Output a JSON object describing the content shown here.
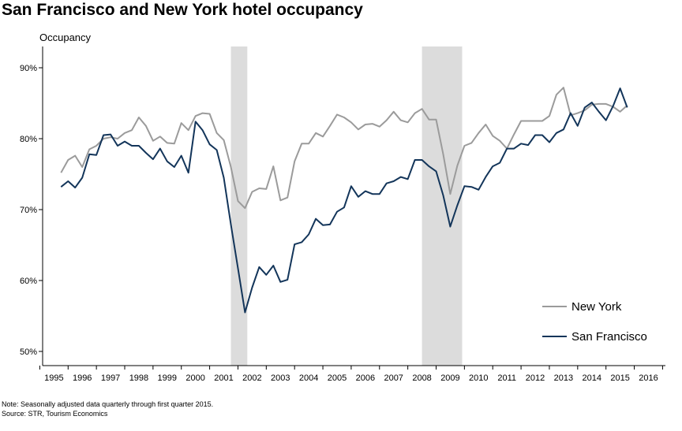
{
  "chart_data": {
    "type": "line",
    "title": "San Francisco and New York hotel occupancy",
    "ylabel": "Occupancy",
    "xlabel": "",
    "ylim": [
      0.48,
      0.93
    ],
    "xlim": [
      1994.6,
      2016.6
    ],
    "yticks": [
      "50%",
      "60%",
      "70%",
      "80%",
      "90%"
    ],
    "ytick_values": [
      0.5,
      0.6,
      0.7,
      0.8,
      0.9
    ],
    "xticks": [
      "1995",
      "1996",
      "1997",
      "1998",
      "1999",
      "2000",
      "2001",
      "2002",
      "2003",
      "2004",
      "2005",
      "2006",
      "2007",
      "2008",
      "2009",
      "2010",
      "2011",
      "2012",
      "2013",
      "2014",
      "2015",
      "2016"
    ],
    "grid": false,
    "legend_position": "bottom-right",
    "recessions": [
      [
        2001.25,
        2001.83
      ],
      [
        2008.0,
        2009.42
      ]
    ],
    "recession_color": "#dcdcdc",
    "series": [
      {
        "name": "New York",
        "color": "#9b9b9b",
        "points": [
          [
            1995.25,
            0.752
          ],
          [
            1995.5,
            0.77
          ],
          [
            1995.75,
            0.776
          ],
          [
            1996.0,
            0.76
          ],
          [
            1996.25,
            0.785
          ],
          [
            1996.5,
            0.79
          ],
          [
            1996.75,
            0.8
          ],
          [
            1997.0,
            0.802
          ],
          [
            1997.25,
            0.8
          ],
          [
            1997.5,
            0.808
          ],
          [
            1997.75,
            0.812
          ],
          [
            1998.0,
            0.83
          ],
          [
            1998.25,
            0.818
          ],
          [
            1998.5,
            0.797
          ],
          [
            1998.75,
            0.803
          ],
          [
            1999.0,
            0.794
          ],
          [
            1999.25,
            0.793
          ],
          [
            1999.5,
            0.822
          ],
          [
            1999.75,
            0.812
          ],
          [
            2000.0,
            0.832
          ],
          [
            2000.25,
            0.836
          ],
          [
            2000.5,
            0.835
          ],
          [
            2000.75,
            0.808
          ],
          [
            2001.0,
            0.798
          ],
          [
            2001.25,
            0.76
          ],
          [
            2001.5,
            0.712
          ],
          [
            2001.75,
            0.702
          ],
          [
            2002.0,
            0.725
          ],
          [
            2002.25,
            0.73
          ],
          [
            2002.5,
            0.729
          ],
          [
            2002.75,
            0.761
          ],
          [
            2003.0,
            0.713
          ],
          [
            2003.25,
            0.717
          ],
          [
            2003.5,
            0.768
          ],
          [
            2003.75,
            0.793
          ],
          [
            2004.0,
            0.793
          ],
          [
            2004.25,
            0.808
          ],
          [
            2004.5,
            0.803
          ],
          [
            2004.75,
            0.818
          ],
          [
            2005.0,
            0.834
          ],
          [
            2005.25,
            0.83
          ],
          [
            2005.5,
            0.823
          ],
          [
            2005.75,
            0.813
          ],
          [
            2006.0,
            0.82
          ],
          [
            2006.25,
            0.821
          ],
          [
            2006.5,
            0.817
          ],
          [
            2006.75,
            0.826
          ],
          [
            2007.0,
            0.838
          ],
          [
            2007.25,
            0.826
          ],
          [
            2007.5,
            0.823
          ],
          [
            2007.75,
            0.836
          ],
          [
            2008.0,
            0.842
          ],
          [
            2008.25,
            0.827
          ],
          [
            2008.5,
            0.827
          ],
          [
            2008.75,
            0.778
          ],
          [
            2009.0,
            0.722
          ],
          [
            2009.25,
            0.762
          ],
          [
            2009.5,
            0.79
          ],
          [
            2009.75,
            0.794
          ],
          [
            2010.0,
            0.808
          ],
          [
            2010.25,
            0.82
          ],
          [
            2010.5,
            0.804
          ],
          [
            2010.75,
            0.797
          ],
          [
            2011.0,
            0.786
          ],
          [
            2011.25,
            0.806
          ],
          [
            2011.5,
            0.825
          ],
          [
            2011.75,
            0.825
          ],
          [
            2012.0,
            0.825
          ],
          [
            2012.25,
            0.825
          ],
          [
            2012.5,
            0.832
          ],
          [
            2012.75,
            0.862
          ],
          [
            2013.0,
            0.872
          ],
          [
            2013.25,
            0.833
          ],
          [
            2013.5,
            0.836
          ],
          [
            2013.75,
            0.84
          ],
          [
            2014.0,
            0.848
          ],
          [
            2014.25,
            0.849
          ],
          [
            2014.5,
            0.849
          ],
          [
            2014.75,
            0.845
          ],
          [
            2015.0,
            0.838
          ],
          [
            2015.25,
            0.847
          ]
        ]
      },
      {
        "name": "San Francisco",
        "color": "#13355a",
        "points": [
          [
            1995.25,
            0.732
          ],
          [
            1995.5,
            0.74
          ],
          [
            1995.75,
            0.731
          ],
          [
            1996.0,
            0.745
          ],
          [
            1996.25,
            0.778
          ],
          [
            1996.5,
            0.777
          ],
          [
            1996.75,
            0.805
          ],
          [
            1997.0,
            0.806
          ],
          [
            1997.25,
            0.79
          ],
          [
            1997.5,
            0.796
          ],
          [
            1997.75,
            0.79
          ],
          [
            1998.0,
            0.79
          ],
          [
            1998.25,
            0.78
          ],
          [
            1998.5,
            0.771
          ],
          [
            1998.75,
            0.786
          ],
          [
            1999.0,
            0.768
          ],
          [
            1999.25,
            0.76
          ],
          [
            1999.5,
            0.776
          ],
          [
            1999.75,
            0.752
          ],
          [
            2000.0,
            0.824
          ],
          [
            2000.25,
            0.812
          ],
          [
            2000.5,
            0.792
          ],
          [
            2000.75,
            0.784
          ],
          [
            2001.0,
            0.745
          ],
          [
            2001.25,
            0.679
          ],
          [
            2001.5,
            0.617
          ],
          [
            2001.75,
            0.555
          ],
          [
            2002.0,
            0.59
          ],
          [
            2002.25,
            0.619
          ],
          [
            2002.5,
            0.608
          ],
          [
            2002.75,
            0.621
          ],
          [
            2003.0,
            0.598
          ],
          [
            2003.25,
            0.601
          ],
          [
            2003.5,
            0.651
          ],
          [
            2003.75,
            0.654
          ],
          [
            2004.0,
            0.665
          ],
          [
            2004.25,
            0.687
          ],
          [
            2004.5,
            0.678
          ],
          [
            2004.75,
            0.679
          ],
          [
            2005.0,
            0.697
          ],
          [
            2005.25,
            0.703
          ],
          [
            2005.5,
            0.733
          ],
          [
            2005.75,
            0.718
          ],
          [
            2006.0,
            0.726
          ],
          [
            2006.25,
            0.722
          ],
          [
            2006.5,
            0.722
          ],
          [
            2006.75,
            0.737
          ],
          [
            2007.0,
            0.74
          ],
          [
            2007.25,
            0.746
          ],
          [
            2007.5,
            0.743
          ],
          [
            2007.75,
            0.77
          ],
          [
            2008.0,
            0.77
          ],
          [
            2008.25,
            0.761
          ],
          [
            2008.5,
            0.754
          ],
          [
            2008.75,
            0.72
          ],
          [
            2009.0,
            0.676
          ],
          [
            2009.25,
            0.706
          ],
          [
            2009.5,
            0.733
          ],
          [
            2009.75,
            0.732
          ],
          [
            2010.0,
            0.728
          ],
          [
            2010.25,
            0.746
          ],
          [
            2010.5,
            0.761
          ],
          [
            2010.75,
            0.766
          ],
          [
            2011.0,
            0.786
          ],
          [
            2011.25,
            0.786
          ],
          [
            2011.5,
            0.793
          ],
          [
            2011.75,
            0.791
          ],
          [
            2012.0,
            0.805
          ],
          [
            2012.25,
            0.805
          ],
          [
            2012.5,
            0.795
          ],
          [
            2012.75,
            0.808
          ],
          [
            2013.0,
            0.813
          ],
          [
            2013.25,
            0.836
          ],
          [
            2013.5,
            0.818
          ],
          [
            2013.75,
            0.844
          ],
          [
            2014.0,
            0.851
          ],
          [
            2014.25,
            0.838
          ],
          [
            2014.5,
            0.826
          ],
          [
            2014.75,
            0.846
          ],
          [
            2015.0,
            0.871
          ],
          [
            2015.25,
            0.844
          ]
        ]
      }
    ],
    "note": "Note: Seasonally adjusted data quarterly through first quarter 2015.",
    "source": "Source: STR, Tourism Economics"
  }
}
